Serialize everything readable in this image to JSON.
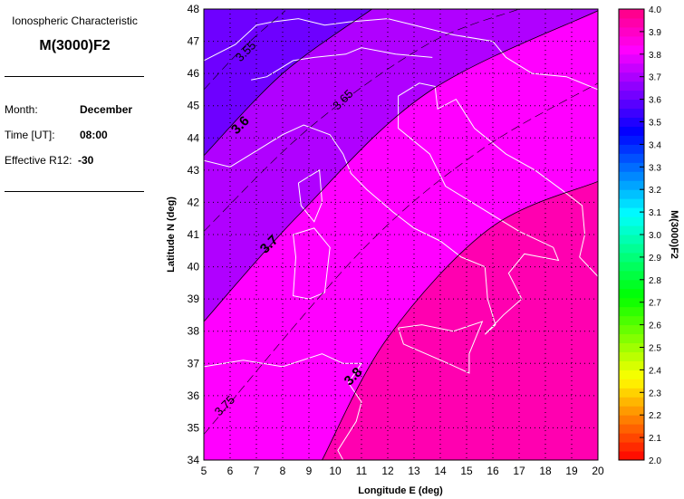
{
  "panel": {
    "subtitle": "Ionospheric Characteristic",
    "title": "M(3000)F2",
    "month_label": "Month:",
    "month_value": "December",
    "time_label": "Time [UT]:",
    "time_value": "08:00",
    "r12_label": "Effective R12:",
    "r12_value": "-30"
  },
  "chart_data": {
    "type": "heatmap",
    "xlabel": "Longitude E (deg)",
    "ylabel": "Latitude N (deg)",
    "xlim": [
      5,
      20
    ],
    "ylim": [
      34,
      48
    ],
    "xticks": [
      "5",
      "6",
      "7",
      "8",
      "9",
      "10",
      "11",
      "12",
      "13",
      "14",
      "15",
      "16",
      "17",
      "18",
      "19",
      "20"
    ],
    "yticks": [
      "34",
      "35",
      "36",
      "37",
      "38",
      "39",
      "40",
      "41",
      "42",
      "43",
      "44",
      "45",
      "46",
      "47",
      "48"
    ],
    "grid": true,
    "colorbar": {
      "label": "M(3000)F2",
      "range": [
        2.0,
        4.0
      ],
      "ticks": [
        "2.0",
        "2.1",
        "2.2",
        "2.3",
        "2.4",
        "2.5",
        "2.6",
        "2.7",
        "2.8",
        "2.9",
        "3.0",
        "3.1",
        "3.2",
        "3.3",
        "3.4",
        "3.5",
        "3.6",
        "3.7",
        "3.8",
        "3.9",
        "4.0"
      ]
    },
    "bands": [
      {
        "range": "<3.6",
        "color": "#6e00ff"
      },
      {
        "range": "3.6-3.7",
        "color": "#b000ff"
      },
      {
        "range": "3.7-3.8",
        "color": "#ff00ff"
      },
      {
        "range": ">3.8",
        "color": "#ff00b0"
      }
    ],
    "contours": [
      {
        "level": "3.55",
        "style": "dashed",
        "points": [
          [
            5,
            45.5
          ],
          [
            6.5,
            46.8
          ],
          [
            8.1,
            47.95
          ]
        ],
        "label_at": [
          6.7,
          46.6
        ]
      },
      {
        "level": "3.6",
        "style": "solid",
        "points": [
          [
            5,
            43.45
          ],
          [
            8,
            46.0
          ],
          [
            11.4,
            48
          ]
        ],
        "label_at": [
          6.5,
          44.3
        ]
      },
      {
        "level": "3.65",
        "style": "dashed",
        "points": [
          [
            5,
            41.1
          ],
          [
            9,
            44.3
          ],
          [
            13.5,
            46.9
          ],
          [
            17,
            48
          ]
        ],
        "label_at": [
          10.4,
          45.1
        ]
      },
      {
        "level": "3.7",
        "style": "solid",
        "points": [
          [
            5,
            38.3
          ],
          [
            8.6,
            41.6
          ],
          [
            13.5,
            45.4
          ],
          [
            20,
            47.95
          ]
        ],
        "label_at": [
          7.6,
          40.6
        ]
      },
      {
        "level": "3.75",
        "style": "dashed",
        "points": [
          [
            5,
            34.8
          ],
          [
            11,
            40.5
          ],
          [
            15.5,
            43.6
          ],
          [
            20,
            45.7
          ]
        ],
        "label_at": [
          5.9,
          35.6
        ]
      },
      {
        "level": "3.8",
        "style": "solid",
        "points": [
          [
            9.5,
            34
          ],
          [
            12,
            37.8
          ],
          [
            15.9,
            41.2
          ],
          [
            20,
            42.65
          ]
        ],
        "label_at": [
          10.8,
          36.5
        ]
      }
    ]
  }
}
